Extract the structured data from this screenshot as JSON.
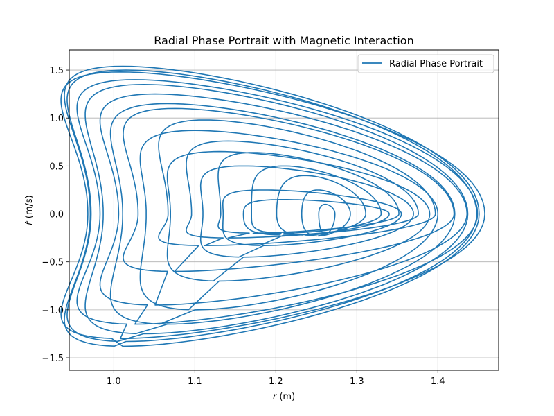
{
  "chart_data": {
    "type": "line",
    "title": "Radial Phase Portrait with Magnetic Interaction",
    "xlabel": "r (m)",
    "xlabel_var": "r",
    "xlabel_unit": " (m)",
    "ylabel": "ṙ (m/s)",
    "ylabel_var": "ṙ",
    "ylabel_unit": " (m/s)",
    "xlim": [
      0.945,
      1.475
    ],
    "ylim": [
      -1.63,
      1.71
    ],
    "xticks": [
      1.0,
      1.1,
      1.2,
      1.3,
      1.4
    ],
    "xtick_labels": [
      "1.0",
      "1.1",
      "1.2",
      "1.3",
      "1.4"
    ],
    "yticks": [
      -1.5,
      -1.0,
      -0.5,
      0.0,
      0.5,
      1.0,
      1.5
    ],
    "ytick_labels": [
      "−1.5",
      "−1.0",
      "−0.5",
      "0.0",
      "0.5",
      "1.0",
      "1.5"
    ],
    "grid": true,
    "legend": "upper right",
    "series": [
      {
        "name": "Radial Phase Portrait",
        "color": "#1f77b4",
        "loops": [
          {
            "cx": 1.263,
            "a": 0.01,
            "b": 0.002,
            "top": 0.1,
            "bot": -0.21
          },
          {
            "cx": 1.262,
            "a": 0.03,
            "b": 0.01,
            "top": 0.25,
            "bot": -0.23
          },
          {
            "cx": 1.256,
            "a": 0.055,
            "b": 0.02,
            "top": 0.4,
            "bot": -0.22
          },
          {
            "cx": 1.25,
            "a": 0.08,
            "b": 0.04,
            "top": 0.5,
            "bot": -0.2
          },
          {
            "cx": 1.242,
            "a": 0.11,
            "b": 0.07,
            "top": 0.64,
            "bot": -0.2
          },
          {
            "cx": 1.236,
            "a": 0.14,
            "b": 0.095,
            "top": 0.76,
            "bot": -0.25
          },
          {
            "cx": 1.232,
            "a": 0.165,
            "b": 0.12,
            "top": 0.98,
            "bot": -0.33
          },
          {
            "cx": 1.225,
            "a": 0.195,
            "b": 0.15,
            "top": 1.1,
            "bot": -0.6
          },
          {
            "cx": 1.221,
            "a": 0.215,
            "b": 0.17,
            "top": 1.25,
            "bot": -0.95
          },
          {
            "cx": 1.216,
            "a": 0.233,
            "b": 0.19,
            "top": 1.4,
            "bot": -1.15
          },
          {
            "cx": 1.213,
            "a": 0.245,
            "b": 0.205,
            "top": 1.48,
            "bot": -1.3
          },
          {
            "cx": 1.211,
            "a": 0.24,
            "b": 0.2,
            "top": 1.54,
            "bot": -1.38
          },
          {
            "cx": 1.21,
            "a": 0.238,
            "b": 0.195,
            "top": 1.5,
            "bot": -1.33
          },
          {
            "cx": 1.212,
            "a": 0.225,
            "b": 0.175,
            "top": 1.35,
            "bot": -1.25
          },
          {
            "cx": 1.216,
            "a": 0.205,
            "b": 0.15,
            "top": 1.15,
            "bot": -1.15
          },
          {
            "cx": 1.22,
            "a": 0.18,
            "b": 0.12,
            "top": 0.87,
            "bot": -1.0
          },
          {
            "cx": 1.23,
            "a": 0.16,
            "b": 0.1,
            "top": 0.65,
            "bot": -0.7
          },
          {
            "cx": 1.24,
            "a": 0.13,
            "b": 0.08,
            "top": 0.5,
            "bot": -0.45
          },
          {
            "cx": 1.245,
            "a": 0.11,
            "b": 0.06,
            "top": 0.25,
            "bot": -0.33
          },
          {
            "cx": 1.25,
            "a": 0.09,
            "b": 0.04,
            "top": 0.15,
            "bot": -0.22
          }
        ]
      }
    ]
  }
}
